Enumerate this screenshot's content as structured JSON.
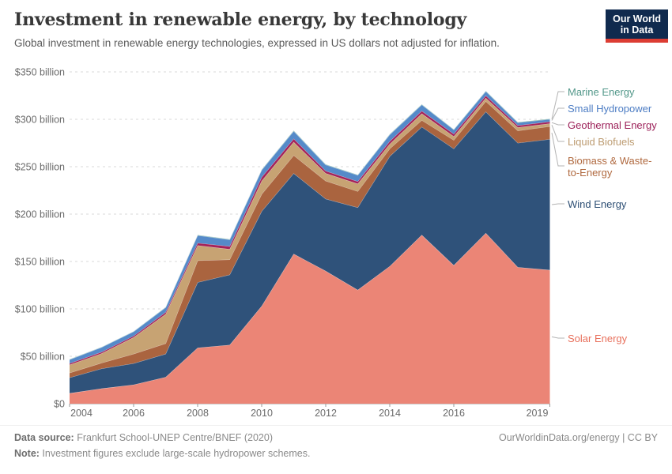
{
  "header": {
    "title": "Investment in renewable energy, by technology",
    "subtitle": "Global investment in renewable energy technologies, expressed in US dollars not adjusted for inflation."
  },
  "logo": {
    "line1": "Our World",
    "line2": "in Data",
    "bg_color": "#102a4e",
    "accent_color": "#dc3d33"
  },
  "legend": {
    "items": [
      {
        "label": "Marine Energy",
        "color": "#53988a",
        "series": "marine"
      },
      {
        "label": "Small Hydropower",
        "color": "#4d7dc4",
        "series": "small_hydro"
      },
      {
        "label": "Geothermal Energy",
        "color": "#9c2159",
        "series": "geothermal"
      },
      {
        "label": "Liquid Biofuels",
        "color": "#bd9c72",
        "series": "biofuels"
      },
      {
        "label": "Biomass & Waste-to-Energy",
        "color": "#b0693f",
        "series": "biomass"
      },
      {
        "label": "Wind Energy",
        "color": "#2d4f74",
        "series": "wind"
      },
      {
        "label": "Solar Energy",
        "color": "#e8705c",
        "series": "solar"
      }
    ]
  },
  "chart_data": {
    "type": "area",
    "stacked": true,
    "title": "Investment in renewable energy, by technology",
    "xlabel": "",
    "ylabel": "US$ billion",
    "x": [
      2004,
      2005,
      2006,
      2007,
      2008,
      2009,
      2010,
      2011,
      2012,
      2013,
      2014,
      2015,
      2016,
      2017,
      2018,
      2019
    ],
    "x_tick_labels": [
      2004,
      2006,
      2008,
      2010,
      2012,
      2014,
      2016,
      2019
    ],
    "ylim": [
      0,
      350
    ],
    "y_ticks": [
      {
        "value": 0,
        "label": "$0"
      },
      {
        "value": 50,
        "label": "$50 billion"
      },
      {
        "value": 100,
        "label": "$100 billion"
      },
      {
        "value": 150,
        "label": "$150 billion"
      },
      {
        "value": 200,
        "label": "$200 billion"
      },
      {
        "value": 250,
        "label": "$250 billion"
      },
      {
        "value": 300,
        "label": "$300 billion"
      },
      {
        "value": 350,
        "label": "$350 billion"
      }
    ],
    "grid": "dashed-horizontal",
    "legend_position": "right",
    "series": [
      {
        "name": "Solar Energy",
        "key": "solar",
        "color": "#eb8576",
        "values": [
          11,
          16,
          20,
          28,
          59,
          62,
          103,
          158,
          140,
          120,
          145,
          178,
          146,
          180,
          144,
          141
        ]
      },
      {
        "name": "Wind Energy",
        "key": "wind",
        "color": "#2f527a",
        "values": [
          16.5,
          21,
          22.5,
          24.5,
          69,
          74,
          100,
          85,
          76,
          87,
          116,
          114,
          123,
          128,
          131,
          138
        ]
      },
      {
        "name": "Biomass & Waste-to-Energy",
        "key": "biomass",
        "color": "#aa643f",
        "values": [
          5,
          6,
          10,
          11,
          23,
          16,
          18,
          19,
          19,
          17,
          8,
          7,
          9,
          11,
          13,
          13.5
        ]
      },
      {
        "name": "Liquid Biofuels",
        "key": "biofuels",
        "color": "#c7a373",
        "values": [
          8.5,
          10,
          17.5,
          31,
          16,
          11,
          14,
          14,
          8,
          8,
          5,
          7,
          4,
          3.5,
          3.5,
          3
        ]
      },
      {
        "name": "Geothermal Energy",
        "key": "geothermal",
        "color": "#a4235a",
        "values": [
          1.5,
          1.5,
          1.5,
          2,
          2.5,
          3,
          4,
          3.5,
          2.5,
          2.5,
          2.8,
          2.8,
          2.5,
          2.5,
          2,
          2
        ]
      },
      {
        "name": "Small Hydropower",
        "key": "small_hydro",
        "color": "#558ac9",
        "values": [
          4,
          5,
          4.5,
          5,
          8,
          7,
          7.5,
          8,
          6.5,
          6.5,
          7,
          6.5,
          4.5,
          4.5,
          3,
          2.5
        ]
      },
      {
        "name": "Marine Energy",
        "key": "marine",
        "color": "#589d8d",
        "values": [
          0.3,
          0.3,
          0.3,
          0.4,
          0.5,
          0.5,
          0.5,
          0.7,
          0.5,
          0.5,
          0.5,
          0.5,
          0.4,
          0.5,
          0.5,
          0.5
        ]
      }
    ]
  },
  "footer": {
    "data_source_label": "Data source:",
    "data_source_value": " Frankfurt School-UNEP Centre/BNEF (2020)",
    "url_text": "OurWorldinData.org/energy | CC BY",
    "note_label": "Note:",
    "note_value": " Investment figures exclude large-scale hydropower schemes."
  },
  "colors": {
    "axis_text": "#6b6b6b",
    "grid_line": "#d9d9d9",
    "baseline": "#999999",
    "connector": "#b3b3b3",
    "title_text": "#383838",
    "subtitle_text": "#5b5b5b",
    "footer_text": "#8a8a8a"
  }
}
